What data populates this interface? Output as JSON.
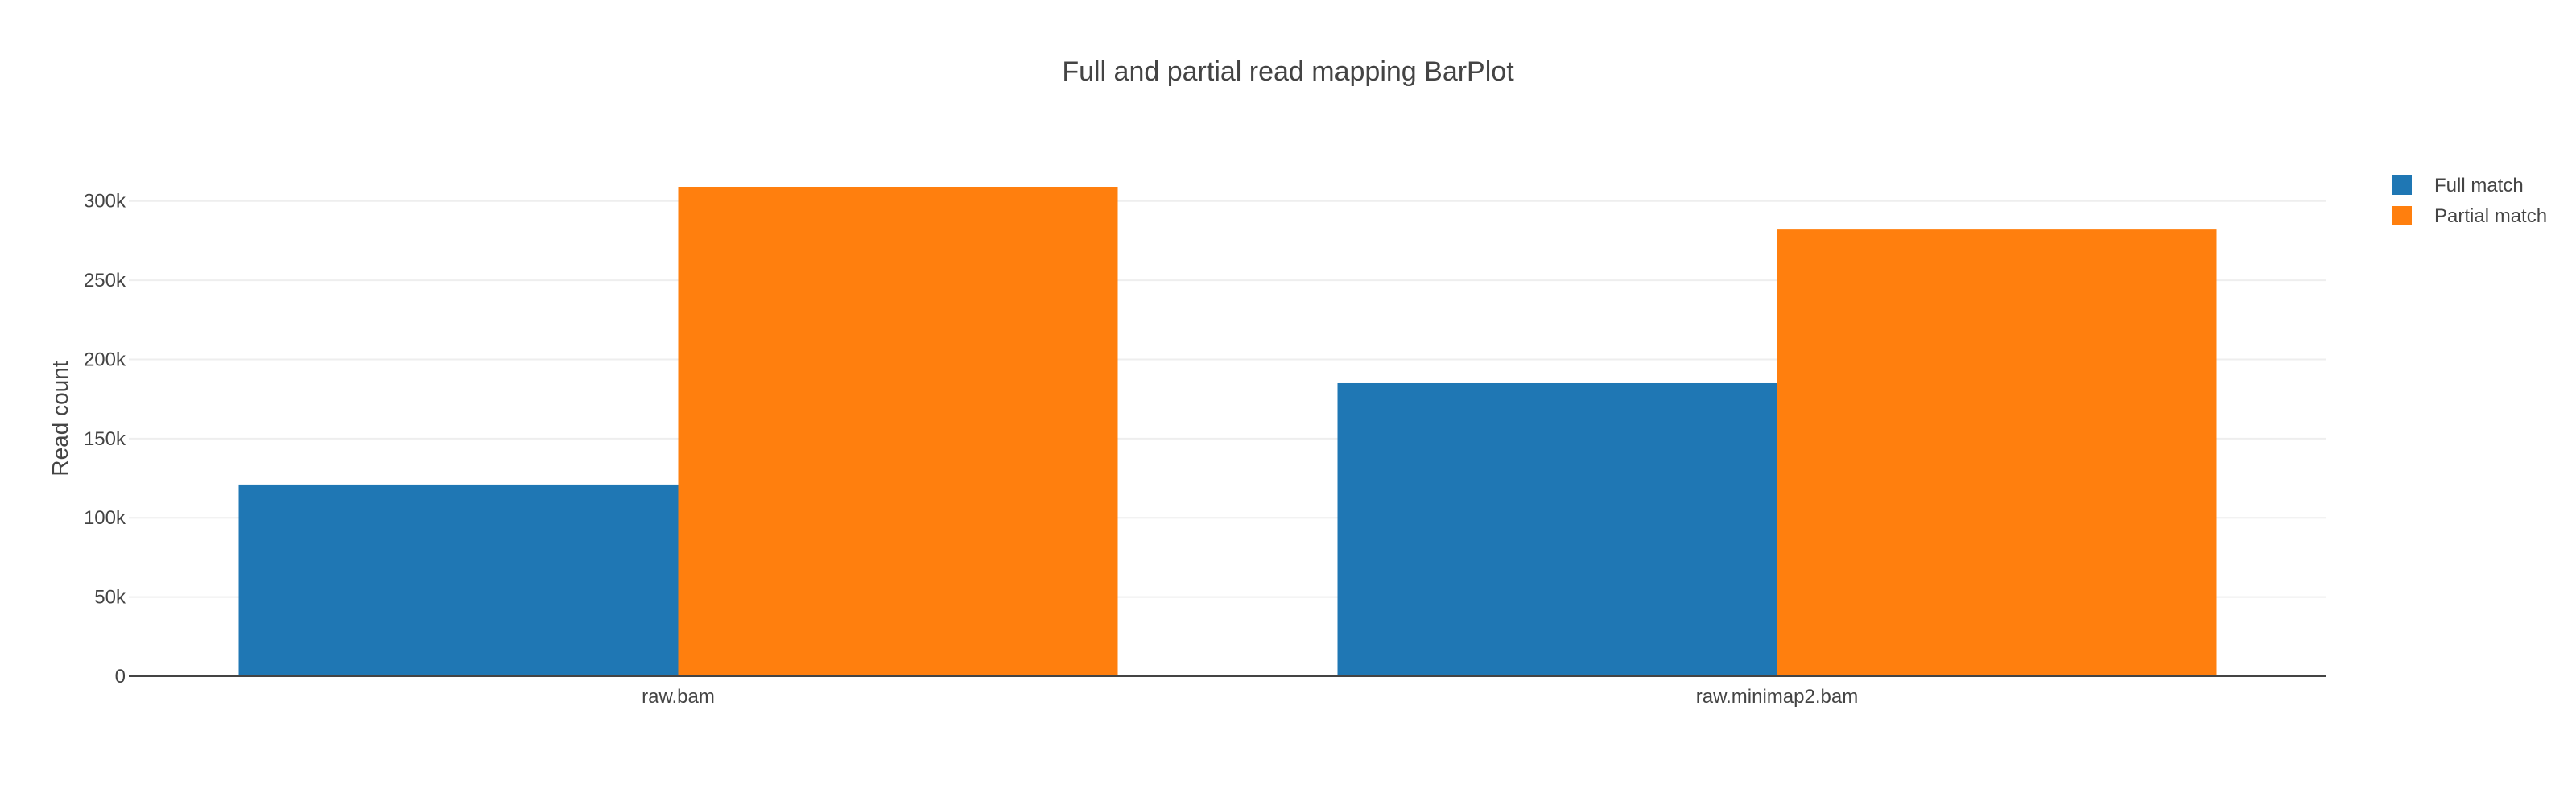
{
  "chart_data": {
    "type": "bar",
    "title": "Full and partial read mapping BarPlot",
    "xlabel": "",
    "ylabel": "Read count",
    "categories": [
      "raw.bam",
      "raw.minimap2.bam"
    ],
    "series": [
      {
        "name": "Full match",
        "color": "#1f77b4",
        "values": [
          121000,
          185000
        ]
      },
      {
        "name": "Partial match",
        "color": "#ff7f0e",
        "values": [
          309000,
          282000
        ]
      }
    ],
    "ylim": [
      0,
      309000
    ],
    "yticks": [
      0,
      50000,
      100000,
      150000,
      200000,
      250000,
      300000
    ],
    "ytick_labels": [
      "0",
      "50k",
      "100k",
      "150k",
      "200k",
      "250k",
      "300k"
    ],
    "grid": true,
    "legend_position": "top-right"
  }
}
